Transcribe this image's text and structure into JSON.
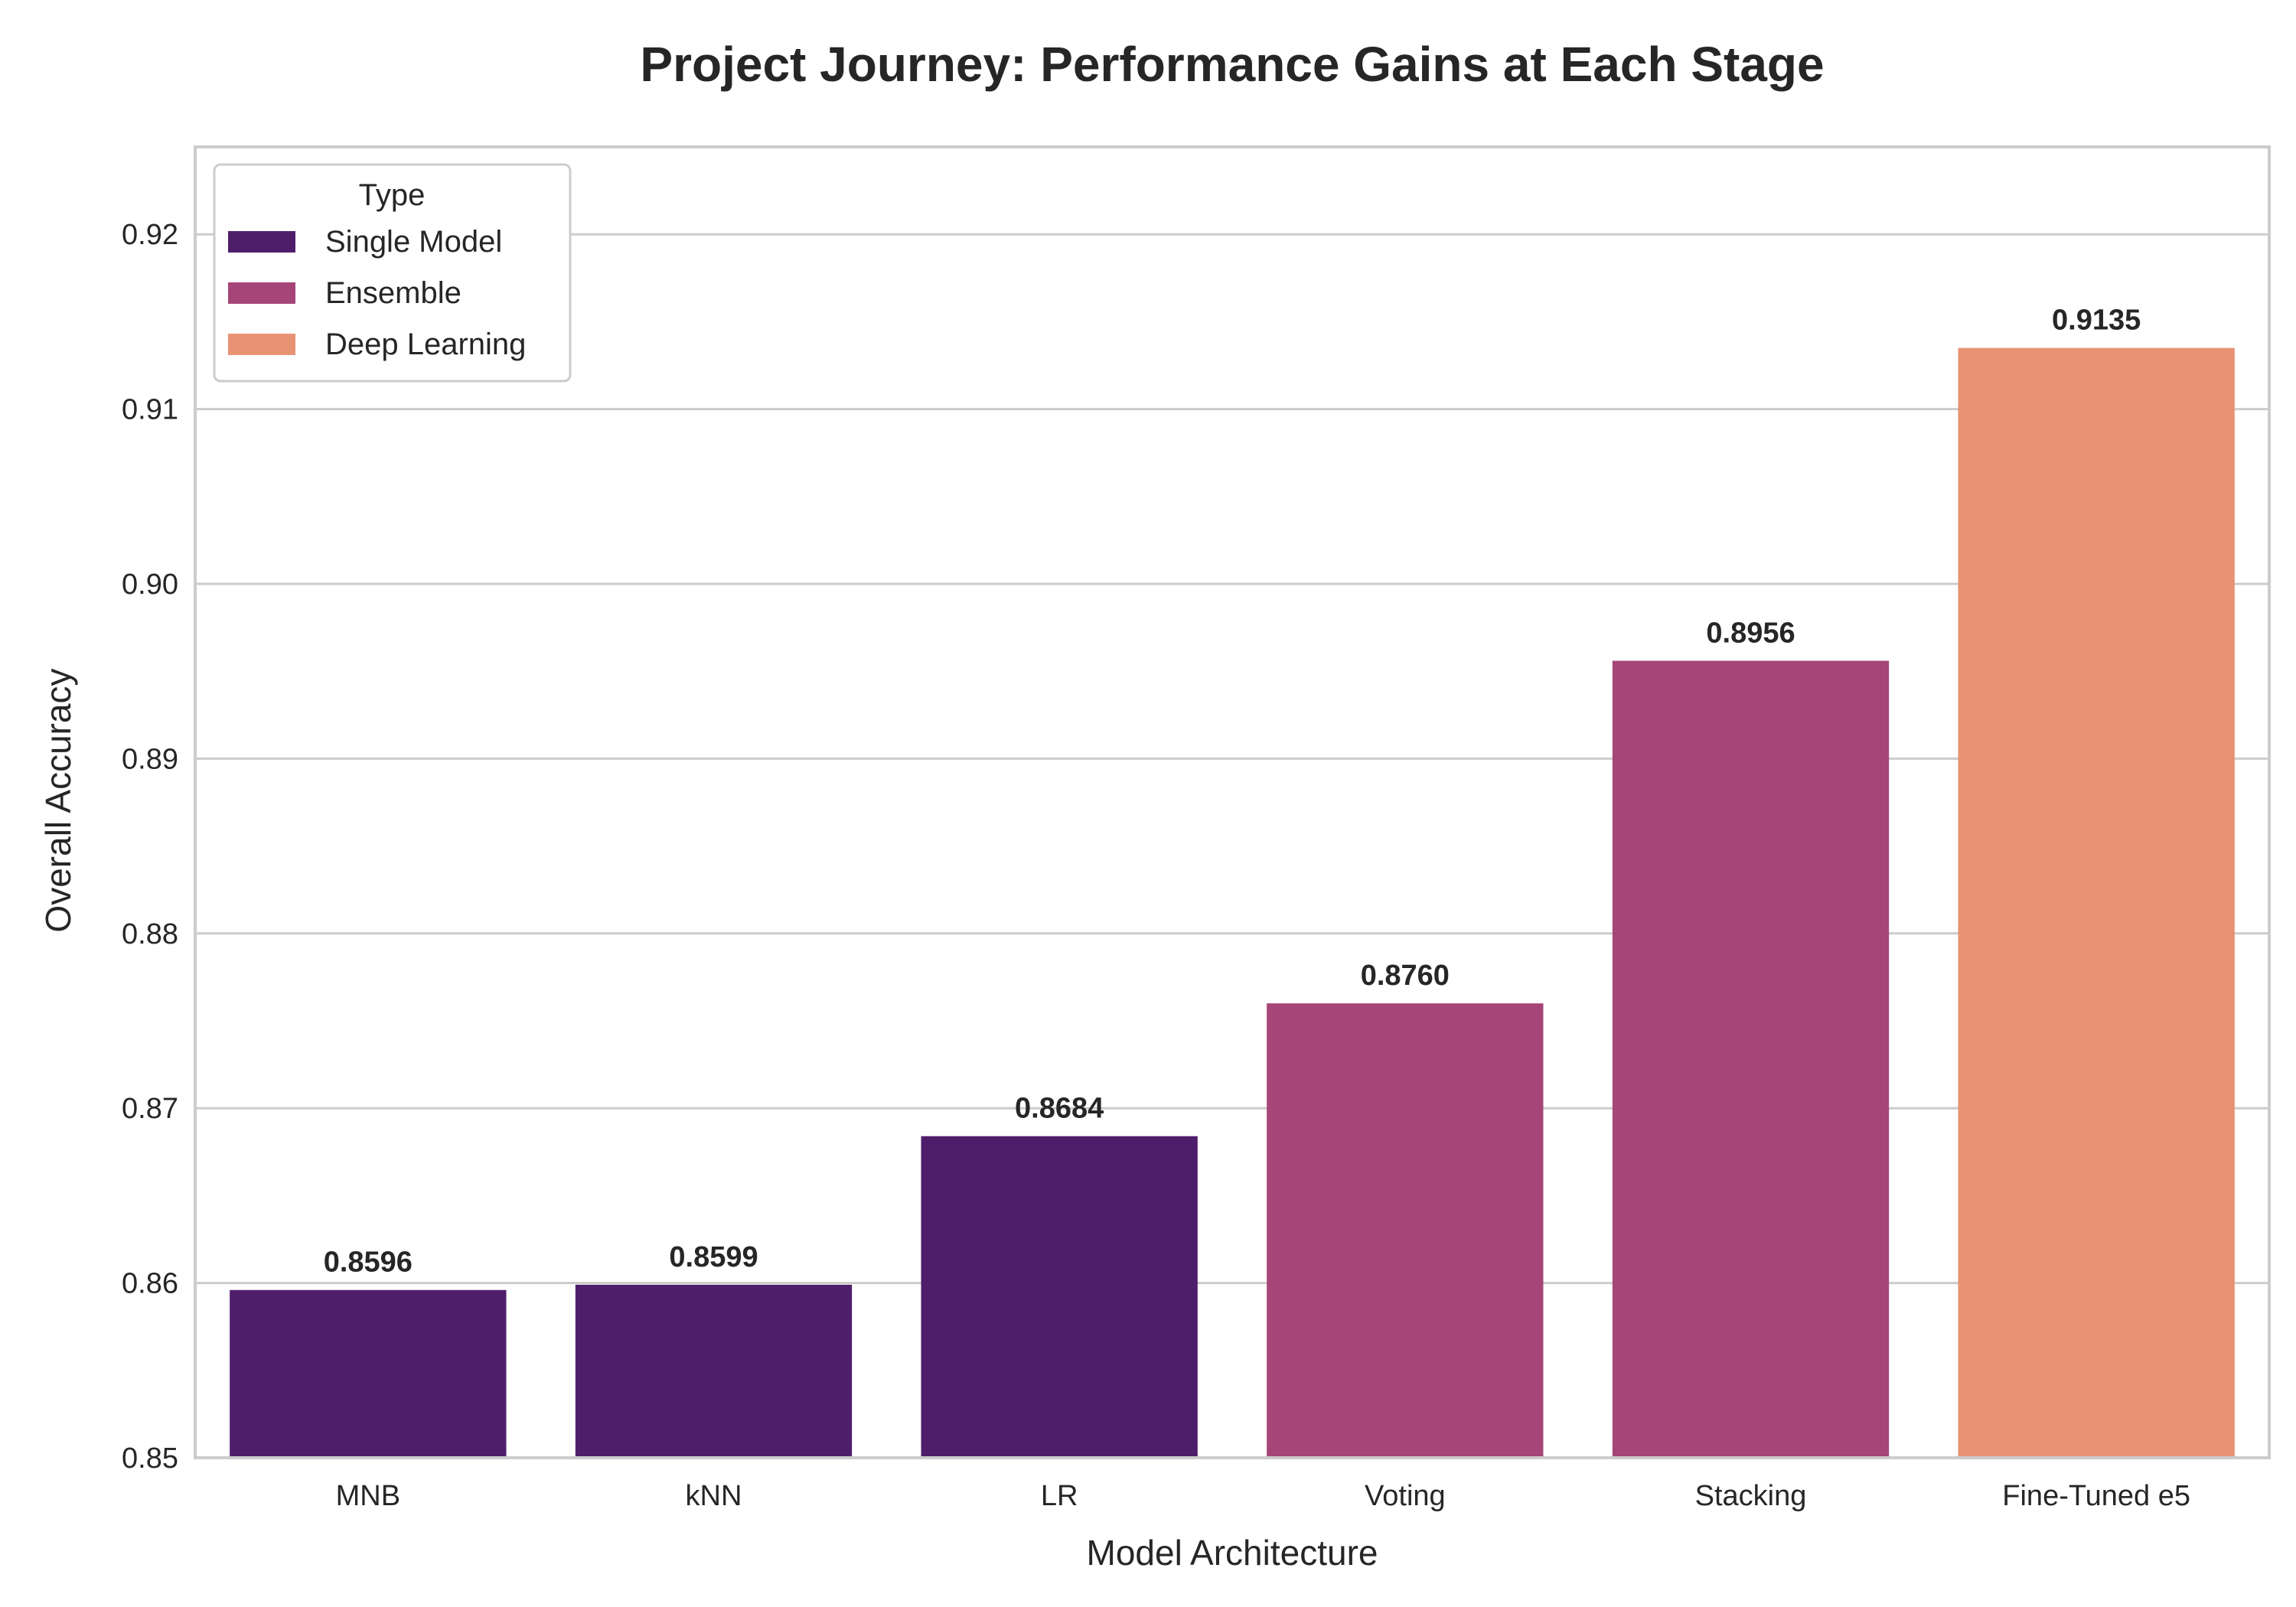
{
  "chart_data": {
    "type": "bar",
    "title": "Project Journey: Performance Gains at Each Stage",
    "xlabel": "Model Architecture",
    "ylabel": "Overall Accuracy",
    "categories": [
      "MNB",
      "kNN",
      "LR",
      "Voting",
      "Stacking",
      "Fine-Tuned e5"
    ],
    "values": [
      0.8596,
      0.8599,
      0.8684,
      0.876,
      0.8956,
      0.9135
    ],
    "value_labels": [
      "0.8596",
      "0.8599",
      "0.8684",
      "0.8760",
      "0.8956",
      "0.9135"
    ],
    "types": [
      "Single Model",
      "Single Model",
      "Single Model",
      "Ensemble",
      "Ensemble",
      "Deep Learning"
    ],
    "ylim": [
      0.85,
      0.925
    ],
    "yticks": [
      0.85,
      0.86,
      0.87,
      0.88,
      0.89,
      0.9,
      0.91,
      0.92
    ],
    "ytick_labels": [
      "0.85",
      "0.86",
      "0.87",
      "0.88",
      "0.89",
      "0.90",
      "0.91",
      "0.92"
    ],
    "grid": true,
    "legend": {
      "title": "Type",
      "placement": "top-left",
      "entries": [
        {
          "name": "Single Model",
          "color": "#4f1e6b"
        },
        {
          "name": "Ensemble",
          "color": "#a64577"
        },
        {
          "name": "Deep Learning",
          "color": "#e89274"
        }
      ]
    }
  }
}
